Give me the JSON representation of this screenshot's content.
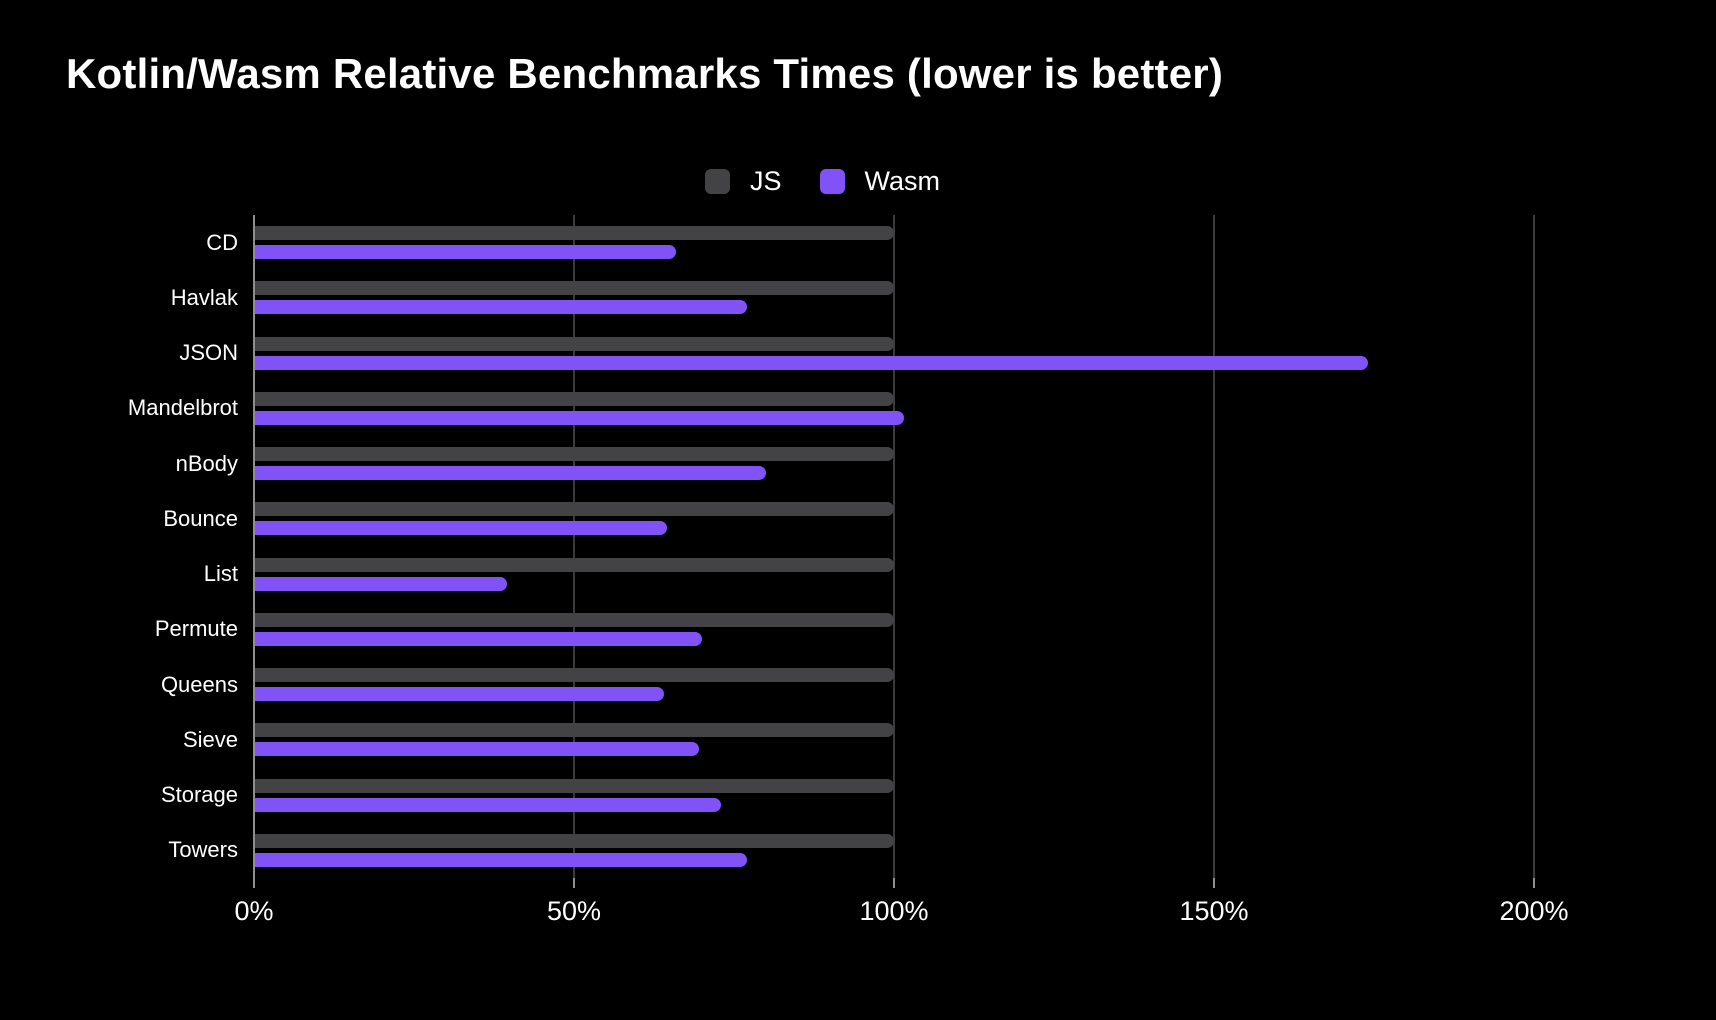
{
  "chart_data": {
    "type": "bar",
    "orientation": "horizontal",
    "title": "Kotlin/Wasm Relative Benchmarks Times (lower is better)",
    "xlabel": "",
    "ylabel": "",
    "xlim": [
      0,
      200
    ],
    "x_tick_values": [
      0,
      50,
      100,
      150,
      200
    ],
    "x_tick_labels": [
      "0%",
      "50%",
      "100%",
      "150%",
      "200%"
    ],
    "grid": true,
    "legend_position": "top-center",
    "categories": [
      "CD",
      "Havlak",
      "JSON",
      "Mandelbrot",
      "nBody",
      "Bounce",
      "List",
      "Permute",
      "Queens",
      "Sieve",
      "Storage",
      "Towers"
    ],
    "series": [
      {
        "name": "JS",
        "color": "#434345",
        "values": [
          100,
          100,
          100,
          100,
          100,
          100,
          100,
          100,
          100,
          100,
          100,
          100
        ]
      },
      {
        "name": "Wasm",
        "color": "#8152f5",
        "values": [
          66,
          77,
          174,
          101.5,
          80,
          64.5,
          39.5,
          70,
          64,
          69.5,
          73,
          77
        ]
      }
    ]
  },
  "colors": {
    "background": "#000000",
    "text": "#ffffff",
    "gridline": "#3a3a3c",
    "axis_line": "#8e8e90",
    "js_bar": "#434345",
    "wasm_bar": "#8152f5"
  }
}
